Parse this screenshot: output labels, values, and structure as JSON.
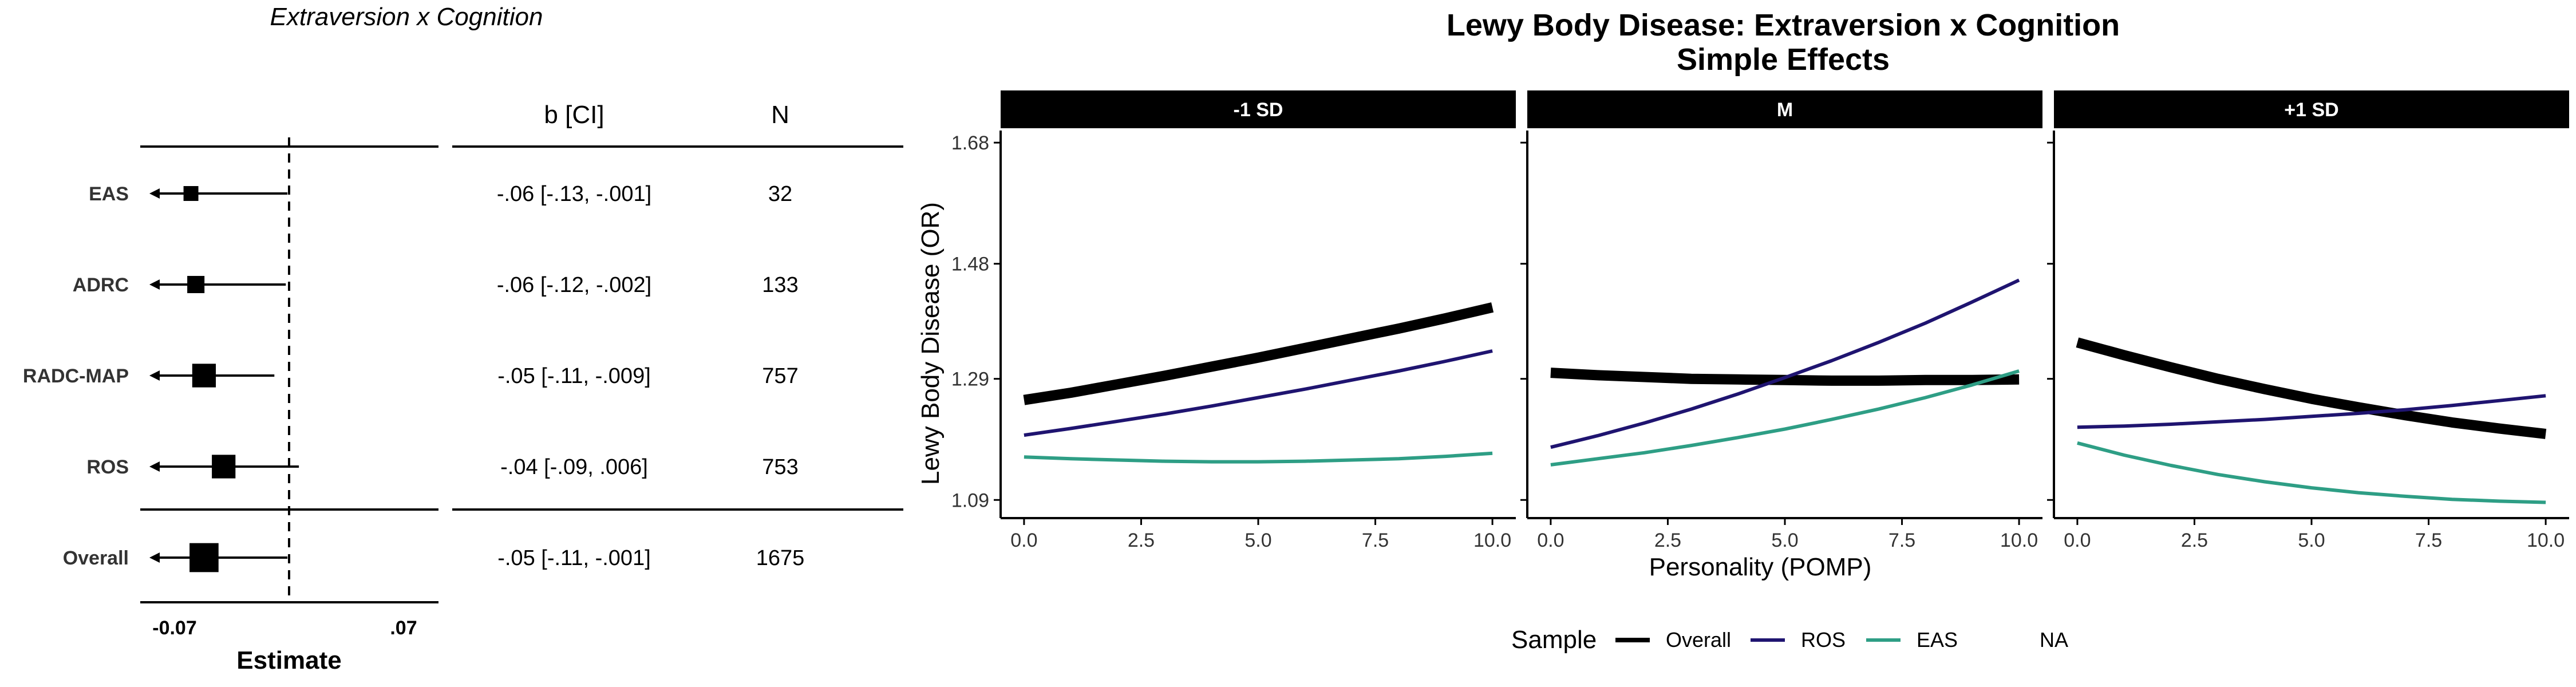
{
  "forest": {
    "title": "Extraversion x Cognition",
    "col_b": "b [CI]",
    "col_n": "N",
    "xlabel": "Estimate",
    "ticks": [
      "-0.07",
      ".07"
    ],
    "rows": [
      {
        "label": "EAS",
        "est": -0.06,
        "lo": -0.13,
        "hi": -0.001,
        "ci": "-.06 [-.13, -.001]",
        "n": "32",
        "size": 32
      },
      {
        "label": "ADRC",
        "est": -0.057,
        "lo": -0.12,
        "hi": -0.002,
        "ci": "-.06 [-.12, -.002]",
        "n": "133",
        "size": 133
      },
      {
        "label": "RADC-MAP",
        "est": -0.052,
        "lo": -0.11,
        "hi": -0.009,
        "ci": "-.05 [-.11, -.009]",
        "n": "757",
        "size": 757
      },
      {
        "label": "ROS",
        "est": -0.04,
        "lo": -0.09,
        "hi": 0.006,
        "ci": "-.04 [-.09, .006]",
        "n": "753",
        "size": 753
      },
      {
        "label": "Overall",
        "est": -0.052,
        "lo": -0.11,
        "hi": -0.001,
        "ci": "-.05 [-.11, -.001]",
        "n": "1675",
        "size": 1675
      }
    ]
  },
  "chart_data": {
    "type": "line",
    "title": "Lewy Body Disease: Extraversion x Cognition",
    "subtitle": "Simple Effects",
    "xlabel": "Personality (POMP)",
    "ylabel": "Lewy Body Disease (OR)",
    "xlim": [
      -0.5,
      10.5
    ],
    "ylim": [
      1.06,
      1.7
    ],
    "xticks": [
      "0.0",
      "2.5",
      "5.0",
      "7.5",
      "10.0"
    ],
    "yticks": [
      "1.09",
      "1.29",
      "1.48",
      "1.68"
    ],
    "x": [
      0,
      1,
      2,
      3,
      4,
      5,
      6,
      7,
      8,
      9,
      10
    ],
    "legend_title": "Sample",
    "legend_position": "bottom",
    "legend": [
      {
        "name": "Overall",
        "color": "#000000"
      },
      {
        "name": "ROS",
        "color": "#1f1470"
      },
      {
        "name": "EAS",
        "color": "#2e9e85"
      },
      {
        "name": "NA",
        "color": ""
      }
    ],
    "panels": [
      {
        "label": "-1 SD",
        "series": [
          {
            "name": "Overall",
            "color": "#000000",
            "values": [
              1.255,
              1.267,
              1.281,
              1.295,
              1.31,
              1.325,
              1.341,
              1.357,
              1.373,
              1.39,
              1.408
            ]
          },
          {
            "name": "ROS",
            "color": "#1f1470",
            "values": [
              1.197,
              1.208,
              1.22,
              1.232,
              1.245,
              1.259,
              1.273,
              1.288,
              1.303,
              1.319,
              1.336
            ]
          },
          {
            "name": "EAS",
            "color": "#2e9e85",
            "values": [
              1.161,
              1.158,
              1.156,
              1.154,
              1.153,
              1.153,
              1.154,
              1.156,
              1.158,
              1.162,
              1.167
            ]
          }
        ]
      },
      {
        "label": "M",
        "series": [
          {
            "name": "Overall",
            "color": "#000000",
            "values": [
              1.3,
              1.296,
              1.293,
              1.29,
              1.289,
              1.288,
              1.287,
              1.287,
              1.288,
              1.288,
              1.289
            ]
          },
          {
            "name": "ROS",
            "color": "#1f1470",
            "values": [
              1.177,
              1.196,
              1.217,
              1.24,
              1.265,
              1.292,
              1.32,
              1.35,
              1.382,
              1.417,
              1.453
            ]
          },
          {
            "name": "EAS",
            "color": "#2e9e85",
            "values": [
              1.148,
              1.158,
              1.168,
              1.18,
              1.193,
              1.207,
              1.223,
              1.24,
              1.259,
              1.28,
              1.303
            ]
          }
        ]
      },
      {
        "label": "+1 SD",
        "series": [
          {
            "name": "Overall",
            "color": "#000000",
            "values": [
              1.35,
              1.329,
              1.309,
              1.29,
              1.273,
              1.257,
              1.243,
              1.23,
              1.218,
              1.208,
              1.199
            ]
          },
          {
            "name": "ROS",
            "color": "#1f1470",
            "values": [
              1.21,
              1.212,
              1.215,
              1.219,
              1.223,
              1.228,
              1.233,
              1.239,
              1.246,
              1.254,
              1.262
            ]
          },
          {
            "name": "EAS",
            "color": "#2e9e85",
            "values": [
              1.184,
              1.164,
              1.147,
              1.132,
              1.12,
              1.11,
              1.102,
              1.096,
              1.091,
              1.088,
              1.086
            ]
          }
        ]
      }
    ]
  }
}
